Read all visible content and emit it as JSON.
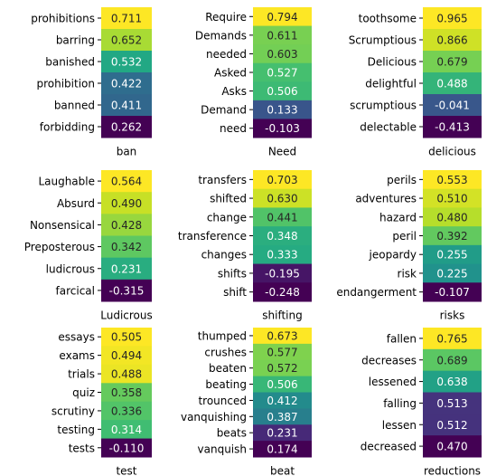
{
  "chart_data": [
    {
      "type": "heatmap",
      "colormap": "viridis",
      "xlabel": "ban",
      "categories": [
        "prohibitions",
        "barring",
        "banished",
        "prohibition",
        "banned",
        "forbidding"
      ],
      "values": [
        0.711,
        0.652,
        0.532,
        0.422,
        0.411,
        0.262
      ],
      "value_labels": [
        "0.711",
        "0.652",
        "0.532",
        "0.422",
        "0.411",
        "0.262"
      ]
    },
    {
      "type": "heatmap",
      "colormap": "viridis",
      "xlabel": "Need",
      "categories": [
        "Require",
        "Demands",
        "needed",
        "Asked",
        "Asks",
        "Demand",
        "need"
      ],
      "values": [
        0.794,
        0.611,
        0.603,
        0.527,
        0.506,
        0.133,
        -0.103
      ],
      "value_labels": [
        "0.794",
        "0.611",
        "0.603",
        "0.527",
        "0.506",
        "0.133",
        "-0.103"
      ]
    },
    {
      "type": "heatmap",
      "colormap": "viridis",
      "xlabel": "delicious",
      "categories": [
        "toothsome",
        "Scrumptious",
        "Delicious",
        "delightful",
        "scrumptious",
        "delectable"
      ],
      "values": [
        0.965,
        0.866,
        0.679,
        0.488,
        -0.041,
        -0.413
      ],
      "value_labels": [
        "0.965",
        "0.866",
        "0.679",
        "0.488",
        "-0.041",
        "-0.413"
      ]
    },
    {
      "type": "heatmap",
      "colormap": "viridis",
      "xlabel": "Ludicrous",
      "categories": [
        "Laughable",
        "Absurd",
        "Nonsensical",
        "Preposterous",
        "ludicrous",
        "farcical"
      ],
      "values": [
        0.564,
        0.49,
        0.428,
        0.342,
        0.231,
        -0.315
      ],
      "value_labels": [
        "0.564",
        "0.490",
        "0.428",
        "0.342",
        "0.231",
        "-0.315"
      ]
    },
    {
      "type": "heatmap",
      "colormap": "viridis",
      "xlabel": "shifting",
      "categories": [
        "transfers",
        "shifted",
        "change",
        "transference",
        "changes",
        "shifts",
        "shift"
      ],
      "values": [
        0.703,
        0.63,
        0.441,
        0.348,
        0.333,
        -0.195,
        -0.248
      ],
      "value_labels": [
        "0.703",
        "0.630",
        "0.441",
        "0.348",
        "0.333",
        "-0.195",
        "-0.248"
      ]
    },
    {
      "type": "heatmap",
      "colormap": "viridis",
      "xlabel": "risks",
      "categories": [
        "perils",
        "adventures",
        "hazard",
        "peril",
        "jeopardy",
        "risk",
        "endangerment"
      ],
      "values": [
        0.553,
        0.51,
        0.48,
        0.392,
        0.255,
        0.225,
        -0.107
      ],
      "value_labels": [
        "0.553",
        "0.510",
        "0.480",
        "0.392",
        "0.255",
        "0.225",
        "-0.107"
      ]
    },
    {
      "type": "heatmap",
      "colormap": "viridis",
      "xlabel": "test",
      "categories": [
        "essays",
        "exams",
        "trials",
        "quiz",
        "scrutiny",
        "testing",
        "tests"
      ],
      "values": [
        0.505,
        0.494,
        0.488,
        0.358,
        0.336,
        0.314,
        -0.11
      ],
      "value_labels": [
        "0.505",
        "0.494",
        "0.488",
        "0.358",
        "0.336",
        "0.314",
        "-0.110"
      ]
    },
    {
      "type": "heatmap",
      "colormap": "viridis",
      "xlabel": "beat",
      "categories": [
        "thumped",
        "crushes",
        "beaten",
        "beating",
        "trounced",
        "vanquishing",
        "beats",
        "vanquish"
      ],
      "values": [
        0.673,
        0.577,
        0.572,
        0.506,
        0.412,
        0.387,
        0.231,
        0.174
      ],
      "value_labels": [
        "0.673",
        "0.577",
        "0.572",
        "0.506",
        "0.412",
        "0.387",
        "0.231",
        "0.174"
      ]
    },
    {
      "type": "heatmap",
      "colormap": "viridis",
      "xlabel": "reductions",
      "categories": [
        "fallen",
        "decreases",
        "lessened",
        "falling",
        "lessen",
        "decreased"
      ],
      "values": [
        0.765,
        0.689,
        0.638,
        0.513,
        0.512,
        0.47
      ],
      "value_labels": [
        "0.765",
        "0.689",
        "0.638",
        "0.513",
        "0.512",
        "0.470"
      ]
    }
  ]
}
